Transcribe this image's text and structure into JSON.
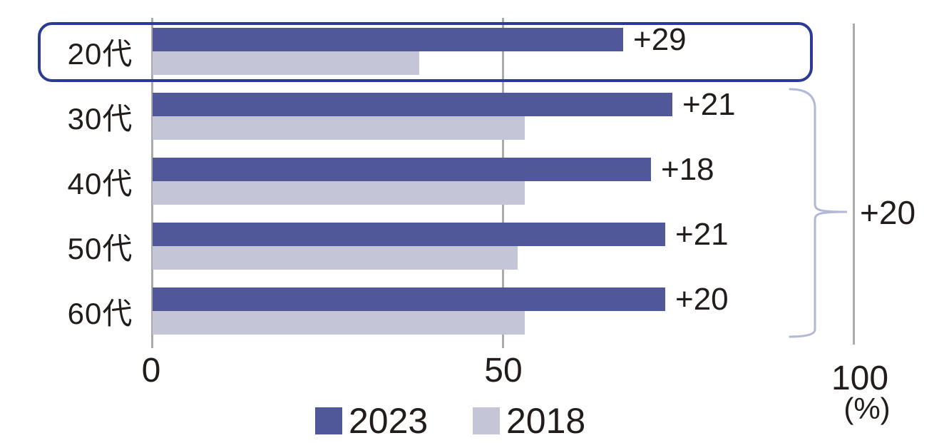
{
  "chart_data": {
    "type": "bar",
    "orientation": "horizontal",
    "title": "",
    "categories": [
      "20代",
      "30代",
      "40代",
      "50代",
      "60代"
    ],
    "series": [
      {
        "name": "2023",
        "color": "#50589a",
        "values": [
          67,
          74,
          71,
          73,
          73
        ]
      },
      {
        "name": "2018",
        "color": "#c4c6d8",
        "values": [
          38,
          53,
          53,
          52,
          53
        ]
      }
    ],
    "diff_labels": [
      "+29",
      "+21",
      "+18",
      "+21",
      "+20"
    ],
    "group_annotation": {
      "label": "+20",
      "applies_to": [
        "30代",
        "40代",
        "50代",
        "60代"
      ]
    },
    "highlighted_category": "20代",
    "x_ticks": [
      {
        "value": 0,
        "label": "0"
      },
      {
        "value": 50,
        "label": "50"
      },
      {
        "value": 100,
        "label": "100"
      }
    ],
    "axis_unit": "(%)",
    "xlim": [
      0,
      100
    ],
    "grid": true,
    "legend_position": "bottom"
  },
  "colors": {
    "bar_2023": "#50589a",
    "bar_2018": "#c4c6d8",
    "highlight_border": "#2b3a97",
    "brace": "#b3b7d8",
    "gridline": "#ababab",
    "text": "#221d1a"
  }
}
